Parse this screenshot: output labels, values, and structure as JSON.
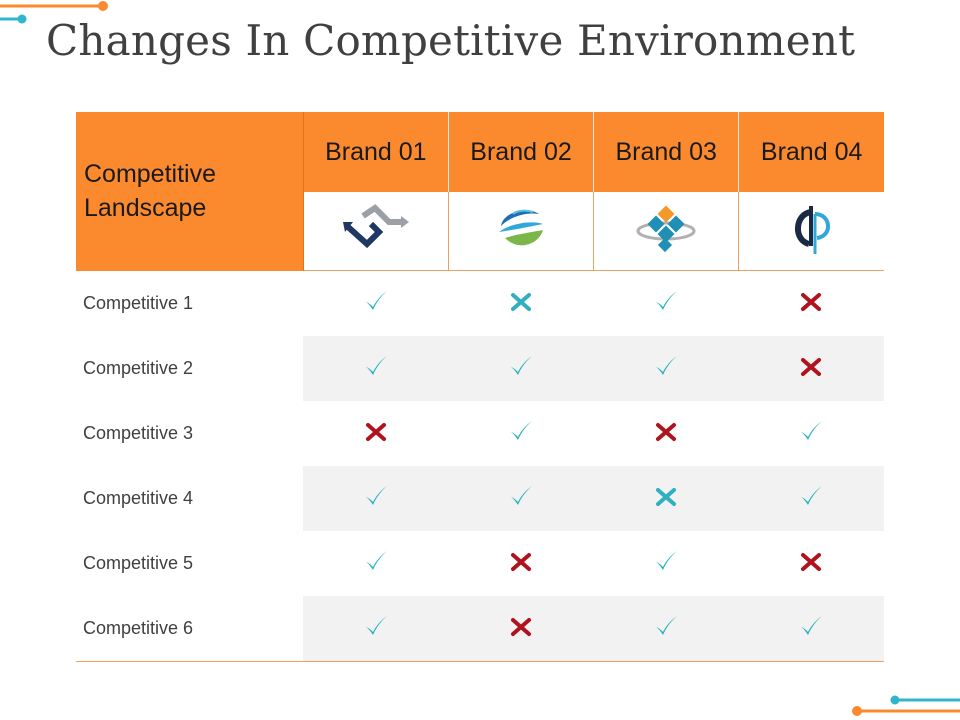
{
  "title": "Changes In Competitive Environment",
  "colors": {
    "accent_orange": "#fb8a2e",
    "accent_teal": "#2fb7c9",
    "check": "#25b3bf",
    "cross_red": "#b0131d",
    "cross_teal": "#2fb0c0"
  },
  "table": {
    "corner_label": "Competitive Landscape",
    "brands": [
      {
        "name": "Brand 01",
        "logo": "arrows-logo-icon"
      },
      {
        "name": "Brand 02",
        "logo": "swirl-globe-logo-icon"
      },
      {
        "name": "Brand 03",
        "logo": "diamond-squares-logo-icon"
      },
      {
        "name": "Brand 04",
        "logo": "dp-letter-logo-icon"
      }
    ],
    "rows": [
      {
        "label": "Competitive 1",
        "marks": [
          "check",
          "cross-teal",
          "check",
          "cross-red"
        ]
      },
      {
        "label": "Competitive 2",
        "marks": [
          "check",
          "check",
          "check",
          "cross-red"
        ]
      },
      {
        "label": "Competitive 3",
        "marks": [
          "cross-red",
          "check",
          "cross-red",
          "check"
        ]
      },
      {
        "label": "Competitive 4",
        "marks": [
          "check",
          "check",
          "cross-teal",
          "check"
        ]
      },
      {
        "label": "Competitive 5",
        "marks": [
          "check",
          "cross-red",
          "check",
          "cross-red"
        ]
      },
      {
        "label": "Competitive 6",
        "marks": [
          "check",
          "cross-red",
          "check",
          "check"
        ]
      }
    ]
  }
}
